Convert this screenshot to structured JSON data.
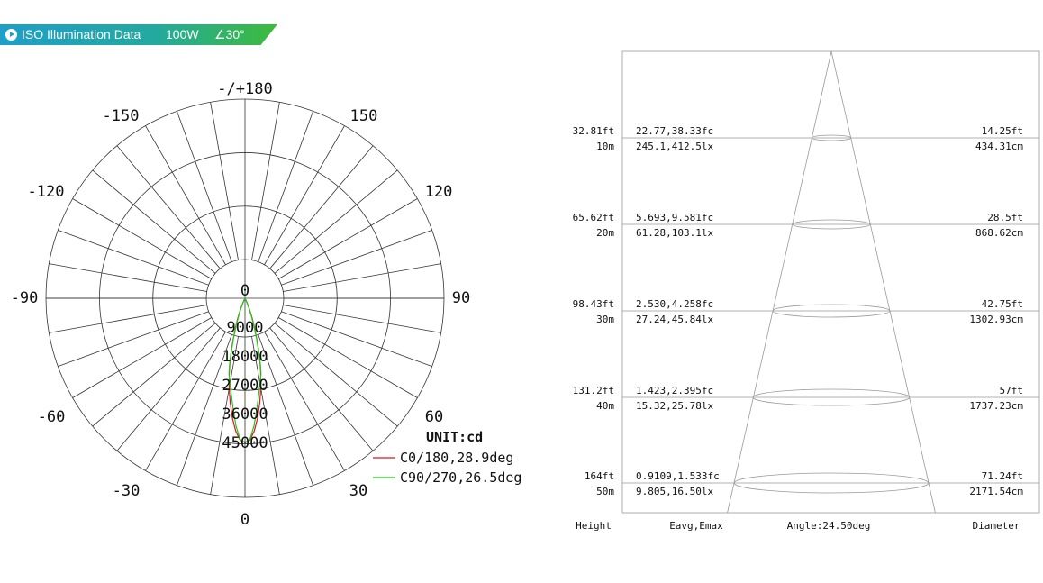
{
  "banner": {
    "title": "ISO Illumination  Data",
    "power": "100W",
    "angle": "∠30°",
    "colors": {
      "start": "#1d9fc8",
      "end": "#3dbb3b"
    }
  },
  "chart_data": [
    {
      "type": "polar",
      "unit_label": "UNIT:cd",
      "angle_labels": [
        "-/+180",
        "150",
        "120",
        "90",
        "60",
        "30",
        "0",
        "-30",
        "-60",
        "-90",
        "-120",
        "-150"
      ],
      "center_label": "0",
      "radial_ticks": [
        0,
        9000,
        18000,
        27000,
        36000,
        45000
      ],
      "radial_max": 50000,
      "series": [
        {
          "name": "C0/180,28.9deg",
          "color": "#e0141e",
          "angles_deg": [
            0,
            2,
            4,
            6,
            8,
            10,
            12,
            13,
            14,
            15,
            16,
            18,
            20,
            22,
            25,
            28
          ],
          "values_cd": [
            45000,
            44200,
            41500,
            37500,
            33000,
            28500,
            23500,
            21000,
            18500,
            16000,
            13500,
            9500,
            6500,
            4000,
            1500,
            0
          ]
        },
        {
          "name": "C90/270,26.5deg",
          "color": "#1ec81e",
          "angles_deg": [
            0,
            2,
            4,
            6,
            8,
            10,
            11,
            12,
            13,
            14,
            16,
            18,
            20,
            22,
            25,
            28
          ],
          "values_cd": [
            45000,
            44000,
            40000,
            35000,
            30500,
            27000,
            25500,
            24000,
            21500,
            18500,
            13000,
            8500,
            5500,
            3000,
            1000,
            0
          ]
        }
      ]
    },
    {
      "type": "table",
      "headers": {
        "height": "Height",
        "eavg": "Eavg,Emax",
        "angle": "Angle:24.50deg",
        "diameter": "Diameter"
      },
      "beam_angle_deg": 24.5,
      "rows": [
        {
          "height_ft": "32.81ft",
          "height_m": "10m",
          "fc": "22.77,38.33fc",
          "lx": "245.1,412.5lx",
          "dia_ft": "14.25ft",
          "dia_cm": "434.31cm"
        },
        {
          "height_ft": "65.62ft",
          "height_m": "20m",
          "fc": "5.693,9.581fc",
          "lx": "61.28,103.1lx",
          "dia_ft": "28.5ft",
          "dia_cm": "868.62cm"
        },
        {
          "height_ft": "98.43ft",
          "height_m": "30m",
          "fc": "2.530,4.258fc",
          "lx": "27.24,45.84lx",
          "dia_ft": "42.75ft",
          "dia_cm": "1302.93cm"
        },
        {
          "height_ft": "131.2ft",
          "height_m": "40m",
          "fc": "1.423,2.395fc",
          "lx": "15.32,25.78lx",
          "dia_ft": "57ft",
          "dia_cm": "1737.23cm"
        },
        {
          "height_ft": "164ft",
          "height_m": "50m",
          "fc": "0.9109,1.533fc",
          "lx": "9.805,16.50lx",
          "dia_ft": "71.24ft",
          "dia_cm": "2171.54cm"
        }
      ]
    }
  ]
}
